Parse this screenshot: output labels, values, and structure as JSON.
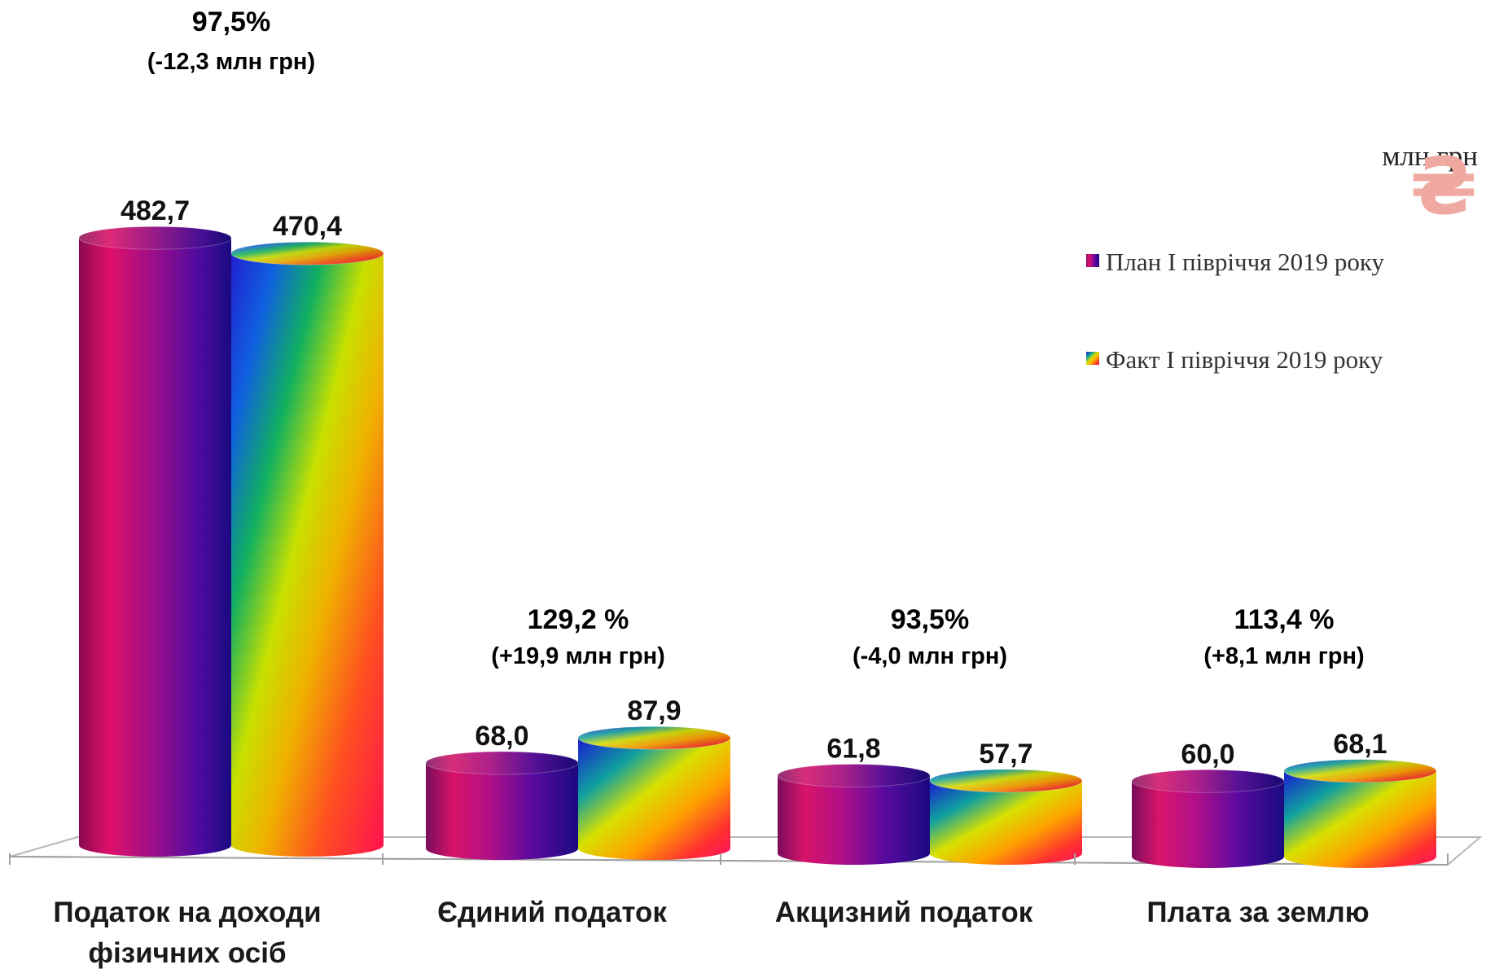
{
  "unit_label": "млн грн",
  "currency_icon": "hryvnia-sign-icon",
  "currency_glyph": "₴",
  "colors": {
    "plan_stops": [
      "#e0104a",
      "#b0108a",
      "#4a0aa0",
      "#1a1aa8"
    ],
    "fact_stops": [
      "#2020e0",
      "#00a0c0",
      "#40c020",
      "#f0e000",
      "#ff8000",
      "#ff1040"
    ]
  },
  "chart_data": {
    "type": "bar",
    "categories": [
      "Податок на доходи фізичних осіб",
      "Єдиний податок",
      "Акцизний податок",
      "Плата за землю"
    ],
    "category_lines": [
      [
        "Податок на доходи",
        "фізичних осіб"
      ],
      [
        "Єдиний податок"
      ],
      [
        "Акцизний податок"
      ],
      [
        "Плата за землю"
      ]
    ],
    "series": [
      {
        "name": "План I півріччя 2019 року",
        "values": [
          482.7,
          68.0,
          61.8,
          60.0
        ],
        "labels": [
          "482,7",
          "68,0",
          "61,8",
          "60,0"
        ]
      },
      {
        "name": "Факт I півріччя 2019 року",
        "values": [
          470.4,
          87.9,
          57.7,
          68.1
        ],
        "labels": [
          "470,4",
          "87,9",
          "57,7",
          "68,1"
        ]
      }
    ],
    "percent_labels": [
      "97,5%",
      "129,2 %",
      "93,5%",
      "113,4 %"
    ],
    "difference_labels": [
      "(-12,3 млн грн)",
      "(+19,9 млн грн)",
      "(-4,0 млн грн)",
      "(+8,1 млн грн)"
    ],
    "ylim": [
      0,
      500
    ],
    "grid": false,
    "legend_position": "right",
    "title": "",
    "xlabel": "",
    "ylabel": ""
  }
}
